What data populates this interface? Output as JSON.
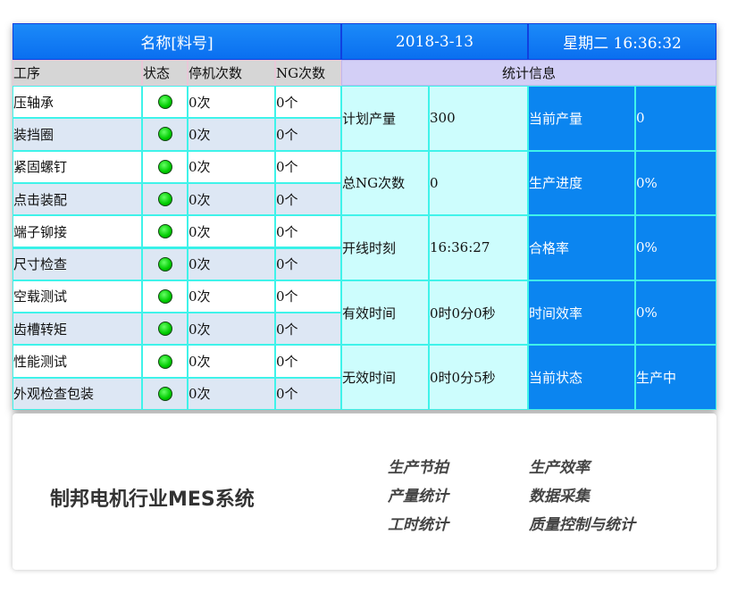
{
  "header": {
    "name_label": "名称[料号]",
    "date": "2018-3-13",
    "weekday_time": "星期二  16:36:32"
  },
  "columns": {
    "process": "工序",
    "status": "状态",
    "stops": "停机次数",
    "ng": "NG次数",
    "stats": "统计信息"
  },
  "processes": [
    {
      "name": "压轴承",
      "status": "ok",
      "stops": "0次",
      "ng": "0个"
    },
    {
      "name": "装挡圈",
      "status": "ok",
      "stops": "0次",
      "ng": "0个"
    },
    {
      "name": "紧固螺钉",
      "status": "ok",
      "stops": "0次",
      "ng": "0个"
    },
    {
      "name": "点击装配",
      "status": "ok",
      "stops": "0次",
      "ng": "0个"
    },
    {
      "name": "端子铆接",
      "status": "ok",
      "stops": "0次",
      "ng": "0个"
    },
    {
      "name": "尺寸检查",
      "status": "ok",
      "stops": "0次",
      "ng": "0个"
    },
    {
      "name": "空载测试",
      "status": "ok",
      "stops": "0次",
      "ng": "0个"
    },
    {
      "name": "齿槽转矩",
      "status": "ok",
      "stops": "0次",
      "ng": "0个"
    },
    {
      "name": "性能测试",
      "status": "ok",
      "stops": "0次",
      "ng": "0个"
    },
    {
      "name": "外观检查包装",
      "status": "ok",
      "stops": "0次",
      "ng": "0个"
    }
  ],
  "stats": [
    {
      "label": "计划产量",
      "value": "300",
      "label2": "当前产量",
      "value2": "0"
    },
    {
      "label": "总NG次数",
      "value": "0",
      "label2": "生产进度",
      "value2": "0%"
    },
    {
      "label": "开线时刻",
      "value": "16:36:27",
      "label2": "合格率",
      "value2": "0%"
    },
    {
      "label": "有效时间",
      "value": "0时0分0秒",
      "label2": "时间效率",
      "value2": "0%"
    },
    {
      "label": "无效时间",
      "value": "0时0分5秒",
      "label2": "当前状态",
      "value2": "生产中"
    }
  ],
  "footer": {
    "title": "制邦电机行业MES系统",
    "features": [
      "生产节拍",
      "生产效率",
      "产量统计",
      "数据采集",
      "工时统计",
      "质量控制与统计"
    ]
  },
  "colors": {
    "status_ok": "#00cc00",
    "header_blue": "#0a6ff0",
    "grid": "#33f0e6"
  }
}
